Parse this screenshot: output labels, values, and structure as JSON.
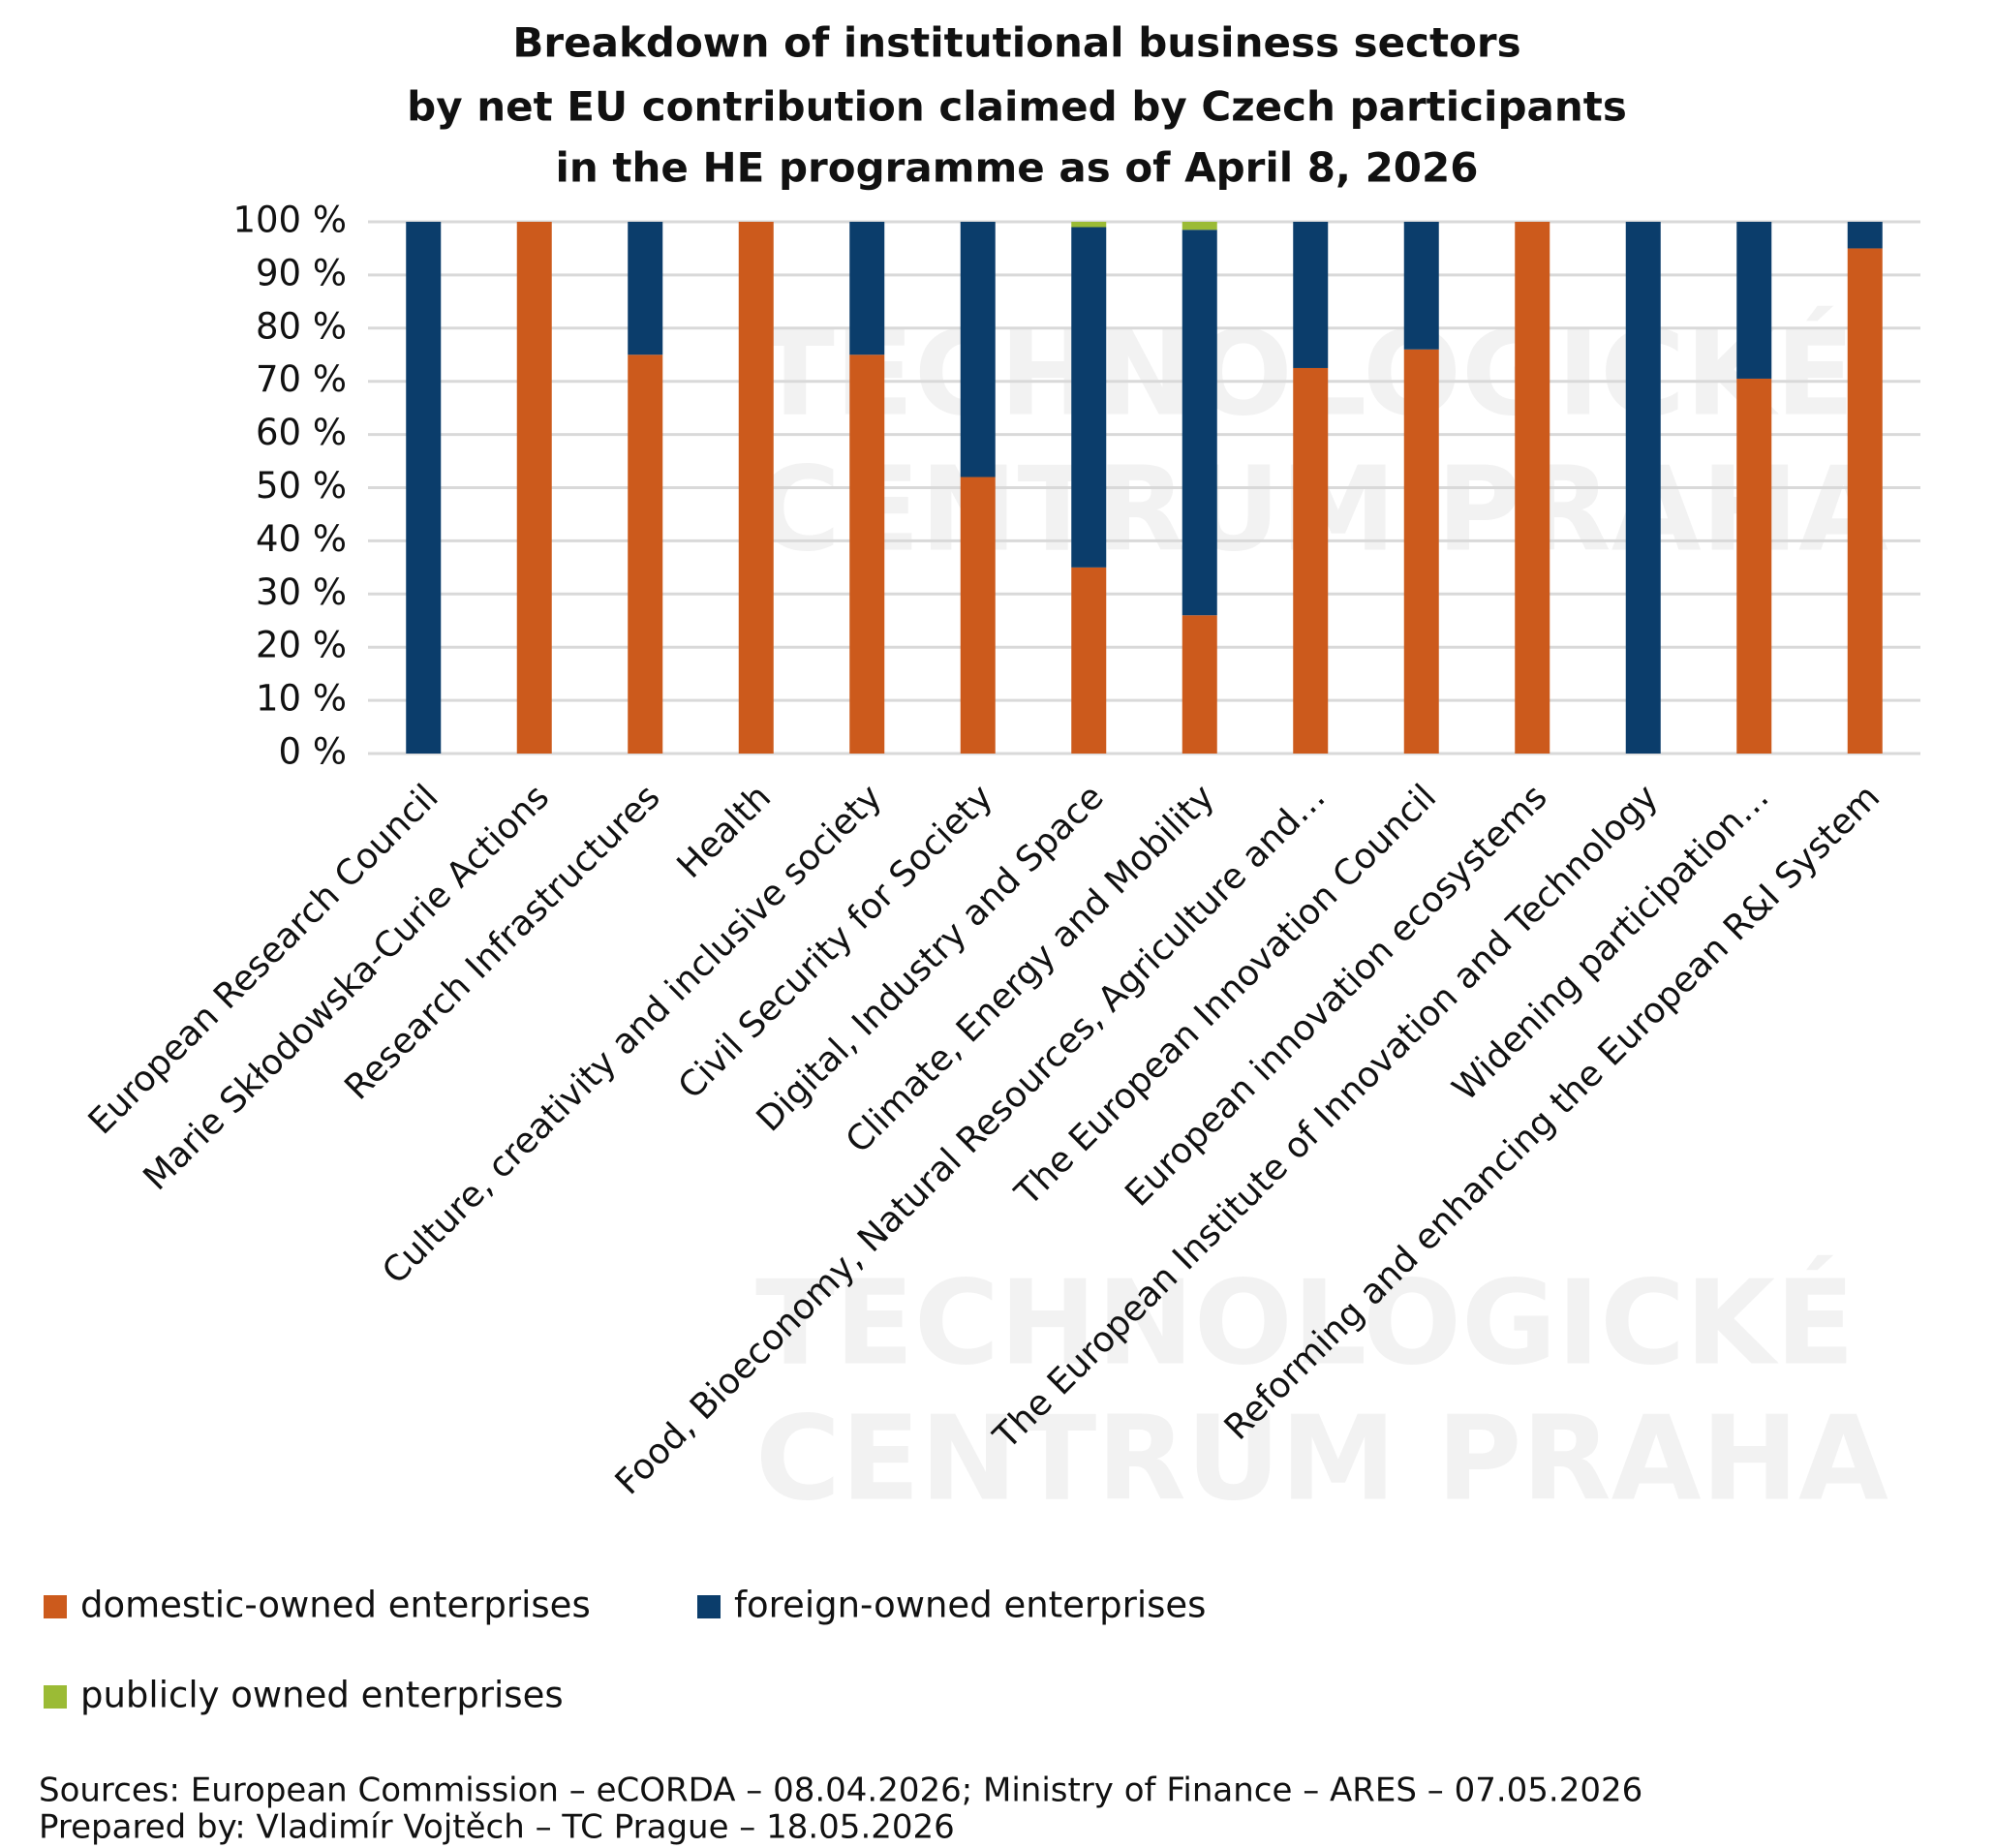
{
  "chart_data": {
    "type": "stacked_bar",
    "title": [
      "Breakdown of institutional business sectors",
      "by net EU contribution claimed by Czech participants",
      "in the HE programme as of April 8, 2026"
    ],
    "categories": [
      "European Research Council",
      "Marie Skłodowska-Curie Actions",
      "Research Infrastructures",
      "Health",
      "Culture, creativity and inclusive society",
      "Civil Security for Society",
      "Digital, Industry and Space",
      "Climate, Energy and Mobility",
      "Food, Bioeconomy, Natural Resources, Agriculture and…",
      "The European Innovation Council",
      "European innovation ecosystems",
      "The European Institute of Innovation and Technology",
      "Widening participation…",
      "Reforming and enhancing the European R&I System"
    ],
    "series": [
      {
        "name": "domestic-owned enterprises",
        "color": "#cc5a1c",
        "values": [
          0,
          100,
          75,
          100,
          75,
          52,
          35,
          26,
          72.5,
          76,
          100,
          0,
          70.5,
          95
        ]
      },
      {
        "name": "foreign-owned enterprises",
        "color": "#0b3d6b",
        "values": [
          100,
          0,
          25,
          0,
          25,
          48,
          64,
          72.5,
          27.5,
          24,
          0,
          100,
          29.5,
          5
        ]
      },
      {
        "name": "publicly owned enterprises",
        "color": "#9bbb35",
        "values": [
          0,
          0,
          0,
          0,
          0,
          0,
          1,
          1.5,
          0,
          0,
          0,
          0,
          0,
          0
        ]
      }
    ],
    "ylim": [
      0,
      100
    ],
    "yticks": [
      {
        "value": 0,
        "label": "0 %"
      },
      {
        "value": 10,
        "label": "10 %"
      },
      {
        "value": 20,
        "label": "20 %"
      },
      {
        "value": 30,
        "label": "30 %"
      },
      {
        "value": 40,
        "label": "40 %"
      },
      {
        "value": 50,
        "label": "50 %"
      },
      {
        "value": 60,
        "label": "60 %"
      },
      {
        "value": 70,
        "label": "70 %"
      },
      {
        "value": 80,
        "label": "80 %"
      },
      {
        "value": 90,
        "label": "90 %"
      },
      {
        "value": 100,
        "label": "100 %"
      }
    ],
    "grid": true,
    "legend": "bottom",
    "watermark": [
      "TECHNOLOGICKÉ",
      "CENTRUM PRAHA"
    ],
    "notes": [
      "Sources: European Commission – eCORDA – 08.04.2026; Ministry of Finance – ARES – 07.05.2026",
      "Prepared by: Vladimír Vojtěch – TC Prague – 18.05.2026"
    ]
  }
}
